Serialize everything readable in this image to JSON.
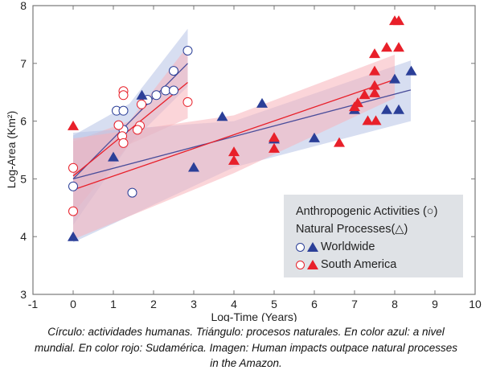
{
  "chart_data": {
    "type": "scatter",
    "xlabel": "Log-Time (Years)",
    "ylabel": "Log-Area (Km²)",
    "xlim": [
      -1,
      10
    ],
    "ylim": [
      3,
      8
    ],
    "xticks": [
      "-1",
      "0",
      "1",
      "2",
      "3",
      "4",
      "5",
      "6",
      "7",
      "8",
      "9",
      "10"
    ],
    "yticks": [
      "3",
      "4",
      "5",
      "6",
      "7",
      "8"
    ],
    "grid": false,
    "legend_placement": "bottom-right",
    "legend": {
      "line1": "Anthropogenic Activities (○)",
      "line2": "Natural Processes(△)",
      "worldwide": "Worldwide",
      "south_america": "South America"
    },
    "colors": {
      "worldwide": "#2b3f98",
      "south_america": "#e8202a",
      "worldwide_band": "#b7c3e6",
      "south_america_band": "#f7b3ba"
    },
    "series": [
      {
        "name": "Worldwide",
        "marker": "circle",
        "color": "#2b3f98",
        "points": [
          [
            0,
            4.87
          ],
          [
            1.08,
            6.18
          ],
          [
            1.25,
            6.18
          ],
          [
            1.25,
            5.85
          ],
          [
            1.47,
            4.76
          ],
          [
            1.85,
            6.37
          ],
          [
            2.07,
            6.45
          ],
          [
            2.3,
            6.53
          ],
          [
            2.5,
            6.53
          ],
          [
            2.5,
            6.87
          ],
          [
            2.85,
            7.22
          ]
        ],
        "fit": [
          [
            0,
            5.0
          ],
          [
            2.85,
            7.0
          ]
        ],
        "band": {
          "x": [
            0,
            1.4,
            2.85
          ],
          "lower": [
            4.2,
            5.6,
            6.6
          ],
          "upper": [
            5.75,
            6.3,
            7.6
          ]
        }
      },
      {
        "name": "South America",
        "marker": "circle",
        "color": "#e8202a",
        "points": [
          [
            0,
            5.19
          ],
          [
            0,
            4.44
          ],
          [
            1.25,
            6.52
          ],
          [
            1.25,
            6.45
          ],
          [
            1.13,
            5.93
          ],
          [
            1.22,
            5.74
          ],
          [
            1.25,
            5.62
          ],
          [
            1.66,
            5.92
          ],
          [
            1.6,
            5.85
          ],
          [
            1.7,
            6.29
          ],
          [
            2.85,
            6.33
          ]
        ],
        "fit": [
          [
            0,
            5.05
          ],
          [
            2.85,
            6.67
          ]
        ],
        "band": {
          "x": [
            0,
            1.4,
            2.85
          ],
          "lower": [
            4.4,
            5.6,
            6.05
          ],
          "upper": [
            5.65,
            6.0,
            7.3
          ]
        }
      },
      {
        "name": "Worldwide",
        "marker": "triangle",
        "color": "#2b3f98",
        "points": [
          [
            0,
            4.0
          ],
          [
            1.0,
            5.38
          ],
          [
            1.71,
            6.45
          ],
          [
            3.0,
            5.2
          ],
          [
            3.71,
            6.08
          ],
          [
            4.7,
            6.31
          ],
          [
            5.0,
            5.69
          ],
          [
            6.0,
            5.71
          ],
          [
            7.0,
            6.2
          ],
          [
            7.8,
            6.2
          ],
          [
            8.1,
            6.2
          ],
          [
            8.0,
            6.73
          ],
          [
            8.41,
            6.87
          ]
        ],
        "fit": [
          [
            0,
            5.0
          ],
          [
            8.4,
            6.54
          ]
        ],
        "band": {
          "x": [
            0,
            4,
            8.4
          ],
          "lower": [
            3.9,
            5.2,
            6.0
          ],
          "upper": [
            5.8,
            6.0,
            7.05
          ]
        }
      },
      {
        "name": "South America",
        "marker": "triangle",
        "color": "#e8202a",
        "points": [
          [
            0,
            5.92
          ],
          [
            4.0,
            5.47
          ],
          [
            4.0,
            5.32
          ],
          [
            5.0,
            5.72
          ],
          [
            5.0,
            5.53
          ],
          [
            6.62,
            5.63
          ],
          [
            7.0,
            6.25
          ],
          [
            7.08,
            6.32
          ],
          [
            7.25,
            6.46
          ],
          [
            7.33,
            6.01
          ],
          [
            7.53,
            6.01
          ],
          [
            7.5,
            6.49
          ],
          [
            7.5,
            6.62
          ],
          [
            7.5,
            6.87
          ],
          [
            7.5,
            7.17
          ],
          [
            7.8,
            7.28
          ],
          [
            8.1,
            7.28
          ],
          [
            8.0,
            7.74
          ],
          [
            8.1,
            7.74
          ]
        ],
        "fit": [
          [
            0,
            4.81
          ],
          [
            8.0,
            6.72
          ]
        ],
        "band": {
          "x": [
            0,
            4,
            8.0
          ],
          "lower": [
            3.95,
            5.1,
            6.4
          ],
          "upper": [
            5.7,
            6.1,
            7.15
          ]
        }
      }
    ]
  },
  "caption": {
    "line1": "Círculo: actividades humanas. Triángulo: procesos naturales. En color azul: a nivel",
    "line2": "mundial. En color rojo: Sudamérica. Imagen: Human impacts outpace natural processes",
    "line3": "in the Amazon."
  }
}
